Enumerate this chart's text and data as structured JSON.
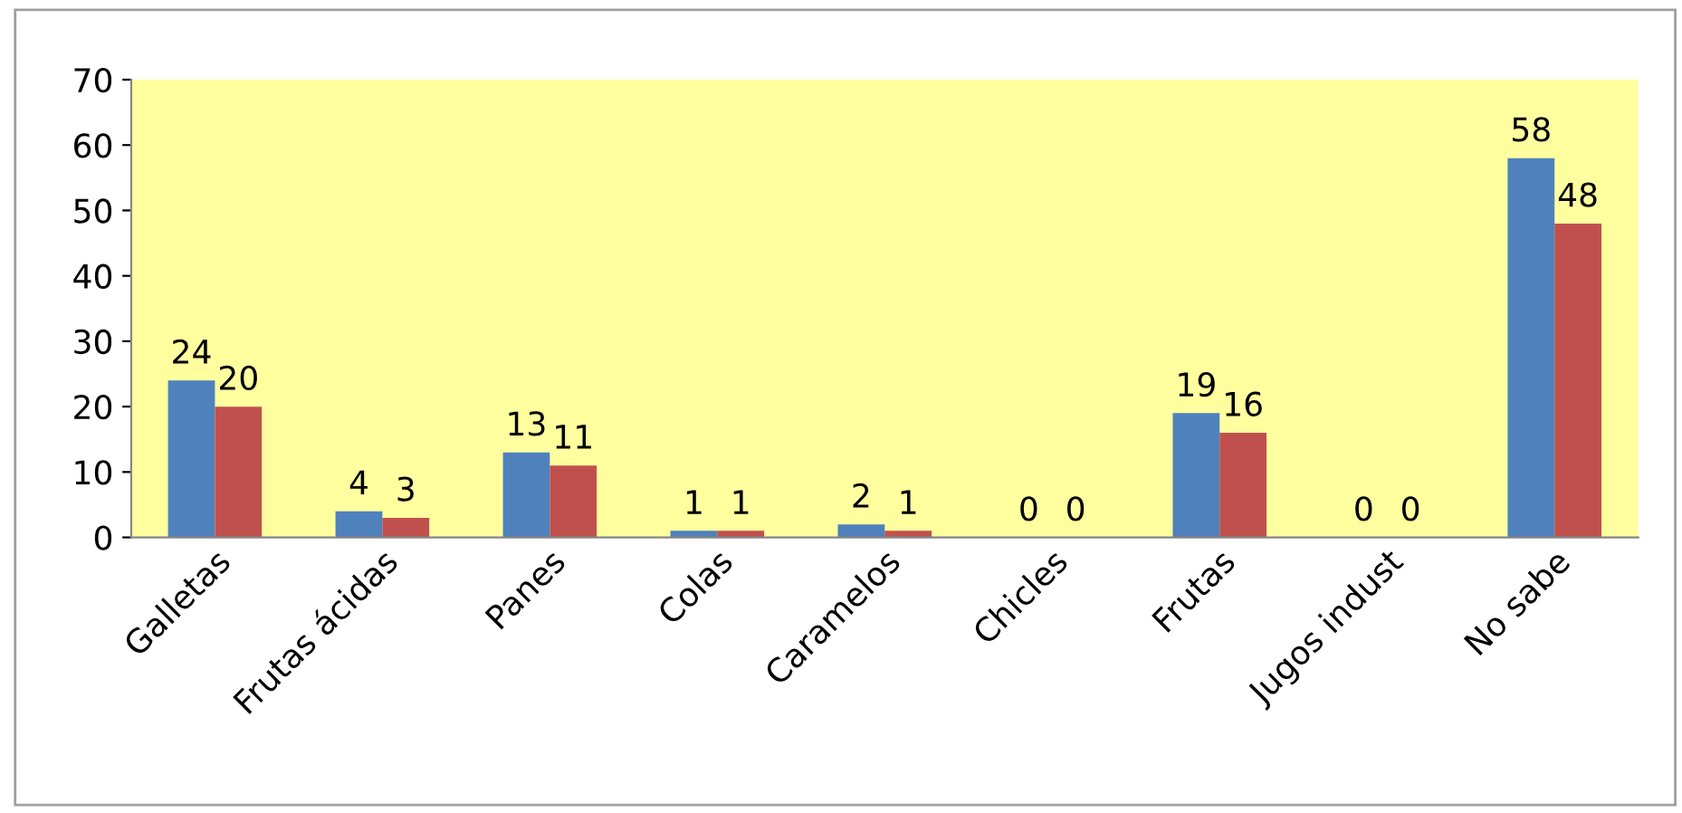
{
  "chart_data": {
    "type": "bar",
    "categories": [
      "Galletas",
      "Frutas ácidas",
      "Panes",
      "Colas",
      "Caramelos",
      "Chicles",
      "Frutas",
      "Jugos indust",
      "No sabe"
    ],
    "series": [
      {
        "color": "#4f81bd",
        "values": [
          24,
          4,
          13,
          1,
          2,
          0,
          19,
          0,
          58
        ]
      },
      {
        "color": "#c0504d",
        "values": [
          20,
          3,
          11,
          1,
          1,
          0,
          16,
          0,
          48
        ]
      }
    ],
    "ylim": [
      0,
      70
    ],
    "yticks": [
      0,
      10,
      20,
      30,
      40,
      50,
      60,
      70
    ],
    "data_labels": true,
    "grid": false,
    "legend": false
  }
}
